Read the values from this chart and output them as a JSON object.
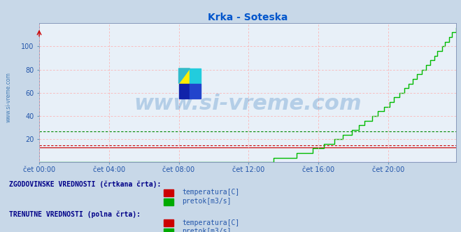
{
  "title": "Krka - Soteska",
  "title_color": "#0055cc",
  "bg_color": "#e8f0f8",
  "fig_bg_color": "#c8d8e8",
  "grid_color": "#ffaaaa",
  "ylim": [
    0,
    120
  ],
  "yticks": [
    20,
    40,
    60,
    80,
    100
  ],
  "xtick_labels": [
    "čet 00:00",
    "čet 04:00",
    "čet 08:00",
    "čet 12:00",
    "čet 16:00",
    "čet 20:00"
  ],
  "xtick_positions": [
    0,
    48,
    96,
    144,
    192,
    240
  ],
  "total_points": 288,
  "hist_temp_value": 15.0,
  "hist_pretok_value": 27.0,
  "hist_temp_color": "#cc0000",
  "hist_pretok_color": "#008800",
  "curr_temp_color": "#cc0000",
  "curr_pretok_color": "#00bb00",
  "curr_height_color": "#0000ff",
  "watermark_text": "www.si-vreme.com",
  "watermark_color": "#1a6ab5",
  "watermark_alpha": 0.25,
  "watermark_fontsize": 22,
  "ylabel_text": "www.si-vreme.com",
  "ylabel_color": "#2266aa",
  "curr_temp_flat": 13.0,
  "curr_height_flat": 0.5,
  "pretok_rise_start": 140,
  "pretok_max": 115,
  "legend_text1": "ZGODOVINSKE VREDNOSTI (črtkana črta):",
  "legend_text2": "TRENUTNE VREDNOSTI (polna črta):",
  "legend_color": "#000088",
  "legend_label1a": "temperatura[C]",
  "legend_label1b": "pretok[m3/s]",
  "legend_label2a": "temperatura[C]",
  "legend_label2b": "pretok[m3/s]",
  "legend_color1": "#cc0000",
  "legend_color2": "#00aa00"
}
